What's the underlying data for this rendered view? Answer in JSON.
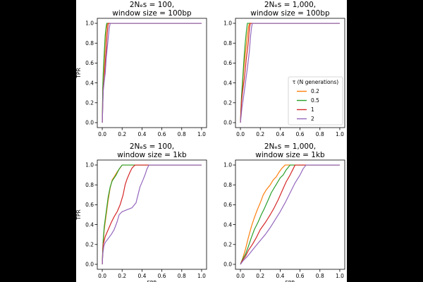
{
  "chart_data": [
    {
      "type": "line",
      "title_line1": "2Nₑs = 100,",
      "title_line2": "window size = 100bp",
      "xlabel": "",
      "ylabel": "TPR",
      "xlim": [
        -0.05,
        1.05
      ],
      "ylim": [
        -0.05,
        1.05
      ],
      "xticks": [
        "0.0",
        "0.2",
        "0.4",
        "0.6",
        "0.8",
        "1.0"
      ],
      "yticks": [
        "0.0",
        "0.2",
        "0.4",
        "0.6",
        "0.8",
        "1.0"
      ],
      "series": [
        {
          "key": "t02",
          "color": "#ff7f0e",
          "points": [
            [
              0,
              0
            ],
            [
              0.005,
              0.3
            ],
            [
              0.01,
              0.45
            ],
            [
              0.02,
              0.6
            ],
            [
              0.03,
              0.8
            ],
            [
              0.04,
              0.93
            ],
            [
              0.05,
              1.0
            ],
            [
              1.0,
              1.0
            ]
          ]
        },
        {
          "key": "t05",
          "color": "#2ca02c",
          "points": [
            [
              0,
              0
            ],
            [
              0.005,
              0.35
            ],
            [
              0.01,
              0.5
            ],
            [
              0.02,
              0.7
            ],
            [
              0.03,
              0.88
            ],
            [
              0.04,
              0.97
            ],
            [
              0.045,
              1.0
            ],
            [
              1.0,
              1.0
            ]
          ]
        },
        {
          "key": "t1",
          "color": "#d62728",
          "points": [
            [
              0,
              0
            ],
            [
              0.01,
              0.35
            ],
            [
              0.02,
              0.45
            ],
            [
              0.03,
              0.6
            ],
            [
              0.04,
              0.75
            ],
            [
              0.05,
              0.9
            ],
            [
              0.06,
              1.0
            ],
            [
              1.0,
              1.0
            ]
          ]
        },
        {
          "key": "t2",
          "color": "#9467bd",
          "points": [
            [
              0,
              0
            ],
            [
              0.01,
              0.32
            ],
            [
              0.02,
              0.42
            ],
            [
              0.03,
              0.5
            ],
            [
              0.04,
              0.65
            ],
            [
              0.055,
              0.8
            ],
            [
              0.07,
              0.95
            ],
            [
              0.08,
              1.0
            ],
            [
              1.0,
              1.0
            ]
          ]
        }
      ]
    },
    {
      "type": "line",
      "title_line1": "2Nₑs = 1,000,",
      "title_line2": "window size = 100bp",
      "xlabel": "",
      "ylabel": "",
      "xlim": [
        -0.05,
        1.05
      ],
      "ylim": [
        -0.05,
        1.05
      ],
      "xticks": [
        "0.0",
        "0.2",
        "0.4",
        "0.6",
        "0.8",
        "1.0"
      ],
      "yticks": [
        "0.0",
        "0.2",
        "0.4",
        "0.6",
        "0.8",
        "1.0"
      ],
      "legend": {
        "title": "τ (N generations)",
        "position": "lower-right",
        "entries": [
          {
            "label": "0.2",
            "color": "#ff7f0e"
          },
          {
            "label": "0.5",
            "color": "#2ca02c"
          },
          {
            "label": "1",
            "color": "#d62728"
          },
          {
            "label": "2",
            "color": "#9467bd"
          }
        ]
      },
      "series": [
        {
          "key": "t02",
          "color": "#ff7f0e",
          "points": [
            [
              0,
              0
            ],
            [
              0.01,
              0.2
            ],
            [
              0.02,
              0.35
            ],
            [
              0.03,
              0.5
            ],
            [
              0.05,
              0.7
            ],
            [
              0.07,
              0.88
            ],
            [
              0.08,
              0.96
            ],
            [
              0.09,
              1.0
            ],
            [
              1.0,
              1.0
            ]
          ]
        },
        {
          "key": "t05",
          "color": "#2ca02c",
          "points": [
            [
              0,
              0
            ],
            [
              0.01,
              0.25
            ],
            [
              0.02,
              0.4
            ],
            [
              0.03,
              0.55
            ],
            [
              0.04,
              0.7
            ],
            [
              0.05,
              0.82
            ],
            [
              0.06,
              0.92
            ],
            [
              0.07,
              1.0
            ],
            [
              1.0,
              1.0
            ]
          ]
        },
        {
          "key": "t1",
          "color": "#d62728",
          "points": [
            [
              0,
              0
            ],
            [
              0.01,
              0.2
            ],
            [
              0.02,
              0.3
            ],
            [
              0.04,
              0.45
            ],
            [
              0.06,
              0.65
            ],
            [
              0.08,
              0.82
            ],
            [
              0.09,
              0.95
            ],
            [
              0.1,
              1.0
            ],
            [
              1.0,
              1.0
            ]
          ]
        },
        {
          "key": "t2",
          "color": "#9467bd",
          "points": [
            [
              0,
              0
            ],
            [
              0.015,
              0.15
            ],
            [
              0.03,
              0.25
            ],
            [
              0.05,
              0.4
            ],
            [
              0.07,
              0.55
            ],
            [
              0.09,
              0.72
            ],
            [
              0.1,
              0.85
            ],
            [
              0.11,
              0.95
            ],
            [
              0.12,
              1.0
            ],
            [
              1.0,
              1.0
            ]
          ]
        }
      ]
    },
    {
      "type": "line",
      "title_line1": "2Nₑs = 100,",
      "title_line2": "window size = 1kb",
      "xlabel": "FPR",
      "ylabel": "TPR",
      "xlim": [
        -0.05,
        1.05
      ],
      "ylim": [
        -0.05,
        1.05
      ],
      "xticks": [
        "0.0",
        "0.2",
        "0.4",
        "0.6",
        "0.8",
        "1.0"
      ],
      "yticks": [
        "0.0",
        "0.2",
        "0.4",
        "0.6",
        "0.8",
        "1.0"
      ],
      "series": [
        {
          "key": "t02",
          "color": "#ff7f0e",
          "points": [
            [
              0,
              0
            ],
            [
              0.005,
              0.15
            ],
            [
              0.01,
              0.22
            ],
            [
              0.02,
              0.35
            ],
            [
              0.04,
              0.5
            ],
            [
              0.06,
              0.65
            ],
            [
              0.08,
              0.77
            ],
            [
              0.1,
              0.85
            ],
            [
              0.12,
              0.88
            ],
            [
              0.15,
              0.93
            ],
            [
              0.18,
              0.97
            ],
            [
              0.2,
              1.0
            ],
            [
              1.0,
              1.0
            ]
          ]
        },
        {
          "key": "t05",
          "color": "#2ca02c",
          "points": [
            [
              0,
              0
            ],
            [
              0.005,
              0.15
            ],
            [
              0.01,
              0.25
            ],
            [
              0.02,
              0.38
            ],
            [
              0.04,
              0.53
            ],
            [
              0.06,
              0.68
            ],
            [
              0.08,
              0.78
            ],
            [
              0.1,
              0.84
            ],
            [
              0.12,
              0.87
            ],
            [
              0.14,
              0.9
            ],
            [
              0.17,
              0.96
            ],
            [
              0.2,
              1.0
            ],
            [
              1.0,
              1.0
            ]
          ]
        },
        {
          "key": "t1",
          "color": "#d62728",
          "points": [
            [
              0,
              0
            ],
            [
              0.005,
              0.1
            ],
            [
              0.01,
              0.2
            ],
            [
              0.03,
              0.28
            ],
            [
              0.06,
              0.35
            ],
            [
              0.09,
              0.42
            ],
            [
              0.12,
              0.48
            ],
            [
              0.15,
              0.53
            ],
            [
              0.18,
              0.6
            ],
            [
              0.21,
              0.7
            ],
            [
              0.23,
              0.8
            ],
            [
              0.25,
              0.86
            ],
            [
              0.28,
              0.93
            ],
            [
              0.3,
              0.97
            ],
            [
              0.33,
              1.0
            ],
            [
              1.0,
              1.0
            ]
          ]
        },
        {
          "key": "t2",
          "color": "#9467bd",
          "points": [
            [
              0,
              0
            ],
            [
              0.005,
              0.1
            ],
            [
              0.015,
              0.18
            ],
            [
              0.03,
              0.22
            ],
            [
              0.06,
              0.26
            ],
            [
              0.09,
              0.3
            ],
            [
              0.12,
              0.35
            ],
            [
              0.15,
              0.43
            ],
            [
              0.17,
              0.5
            ],
            [
              0.2,
              0.53
            ],
            [
              0.25,
              0.55
            ],
            [
              0.3,
              0.57
            ],
            [
              0.34,
              0.62
            ],
            [
              0.36,
              0.7
            ],
            [
              0.38,
              0.78
            ],
            [
              0.41,
              0.85
            ],
            [
              0.43,
              0.9
            ],
            [
              0.45,
              0.96
            ],
            [
              0.47,
              1.0
            ],
            [
              1.0,
              1.0
            ]
          ]
        }
      ]
    },
    {
      "type": "line",
      "title_line1": "2Nₑs = 1,000,",
      "title_line2": "window size = 1kb",
      "xlabel": "FPR",
      "ylabel": "",
      "xlim": [
        -0.05,
        1.05
      ],
      "ylim": [
        -0.05,
        1.05
      ],
      "xticks": [
        "0.0",
        "0.2",
        "0.4",
        "0.6",
        "0.8",
        "1.0"
      ],
      "yticks": [
        "0.0",
        "0.2",
        "0.4",
        "0.6",
        "0.8",
        "1.0"
      ],
      "series": [
        {
          "key": "t02",
          "color": "#ff7f0e",
          "points": [
            [
              0,
              0
            ],
            [
              0.02,
              0.05
            ],
            [
              0.05,
              0.15
            ],
            [
              0.08,
              0.27
            ],
            [
              0.11,
              0.38
            ],
            [
              0.14,
              0.47
            ],
            [
              0.17,
              0.55
            ],
            [
              0.2,
              0.62
            ],
            [
              0.23,
              0.7
            ],
            [
              0.26,
              0.75
            ],
            [
              0.3,
              0.8
            ],
            [
              0.33,
              0.85
            ],
            [
              0.36,
              0.88
            ],
            [
              0.39,
              0.93
            ],
            [
              0.42,
              0.97
            ],
            [
              0.45,
              1.0
            ],
            [
              1.0,
              1.0
            ]
          ]
        },
        {
          "key": "t05",
          "color": "#2ca02c",
          "points": [
            [
              0,
              0
            ],
            [
              0.02,
              0.05
            ],
            [
              0.05,
              0.1
            ],
            [
              0.08,
              0.18
            ],
            [
              0.11,
              0.27
            ],
            [
              0.14,
              0.35
            ],
            [
              0.18,
              0.43
            ],
            [
              0.21,
              0.5
            ],
            [
              0.24,
              0.56
            ],
            [
              0.28,
              0.65
            ],
            [
              0.31,
              0.72
            ],
            [
              0.34,
              0.77
            ],
            [
              0.37,
              0.82
            ],
            [
              0.4,
              0.87
            ],
            [
              0.43,
              0.9
            ],
            [
              0.46,
              0.95
            ],
            [
              0.5,
              1.0
            ],
            [
              1.0,
              1.0
            ]
          ]
        },
        {
          "key": "t1",
          "color": "#d62728",
          "points": [
            [
              0,
              0
            ],
            [
              0.02,
              0.04
            ],
            [
              0.05,
              0.08
            ],
            [
              0.08,
              0.14
            ],
            [
              0.12,
              0.2
            ],
            [
              0.16,
              0.27
            ],
            [
              0.2,
              0.35
            ],
            [
              0.25,
              0.42
            ],
            [
              0.3,
              0.5
            ],
            [
              0.34,
              0.57
            ],
            [
              0.38,
              0.65
            ],
            [
              0.42,
              0.74
            ],
            [
              0.46,
              0.83
            ],
            [
              0.5,
              0.9
            ],
            [
              0.53,
              0.96
            ],
            [
              0.55,
              1.0
            ],
            [
              1.0,
              1.0
            ]
          ]
        },
        {
          "key": "t2",
          "color": "#9467bd",
          "points": [
            [
              0,
              0
            ],
            [
              0.03,
              0.04
            ],
            [
              0.07,
              0.08
            ],
            [
              0.11,
              0.13
            ],
            [
              0.15,
              0.18
            ],
            [
              0.2,
              0.24
            ],
            [
              0.25,
              0.3
            ],
            [
              0.3,
              0.37
            ],
            [
              0.35,
              0.45
            ],
            [
              0.4,
              0.53
            ],
            [
              0.45,
              0.62
            ],
            [
              0.5,
              0.72
            ],
            [
              0.55,
              0.82
            ],
            [
              0.6,
              0.9
            ],
            [
              0.63,
              0.96
            ],
            [
              0.66,
              1.0
            ],
            [
              1.0,
              1.0
            ]
          ]
        }
      ]
    }
  ]
}
